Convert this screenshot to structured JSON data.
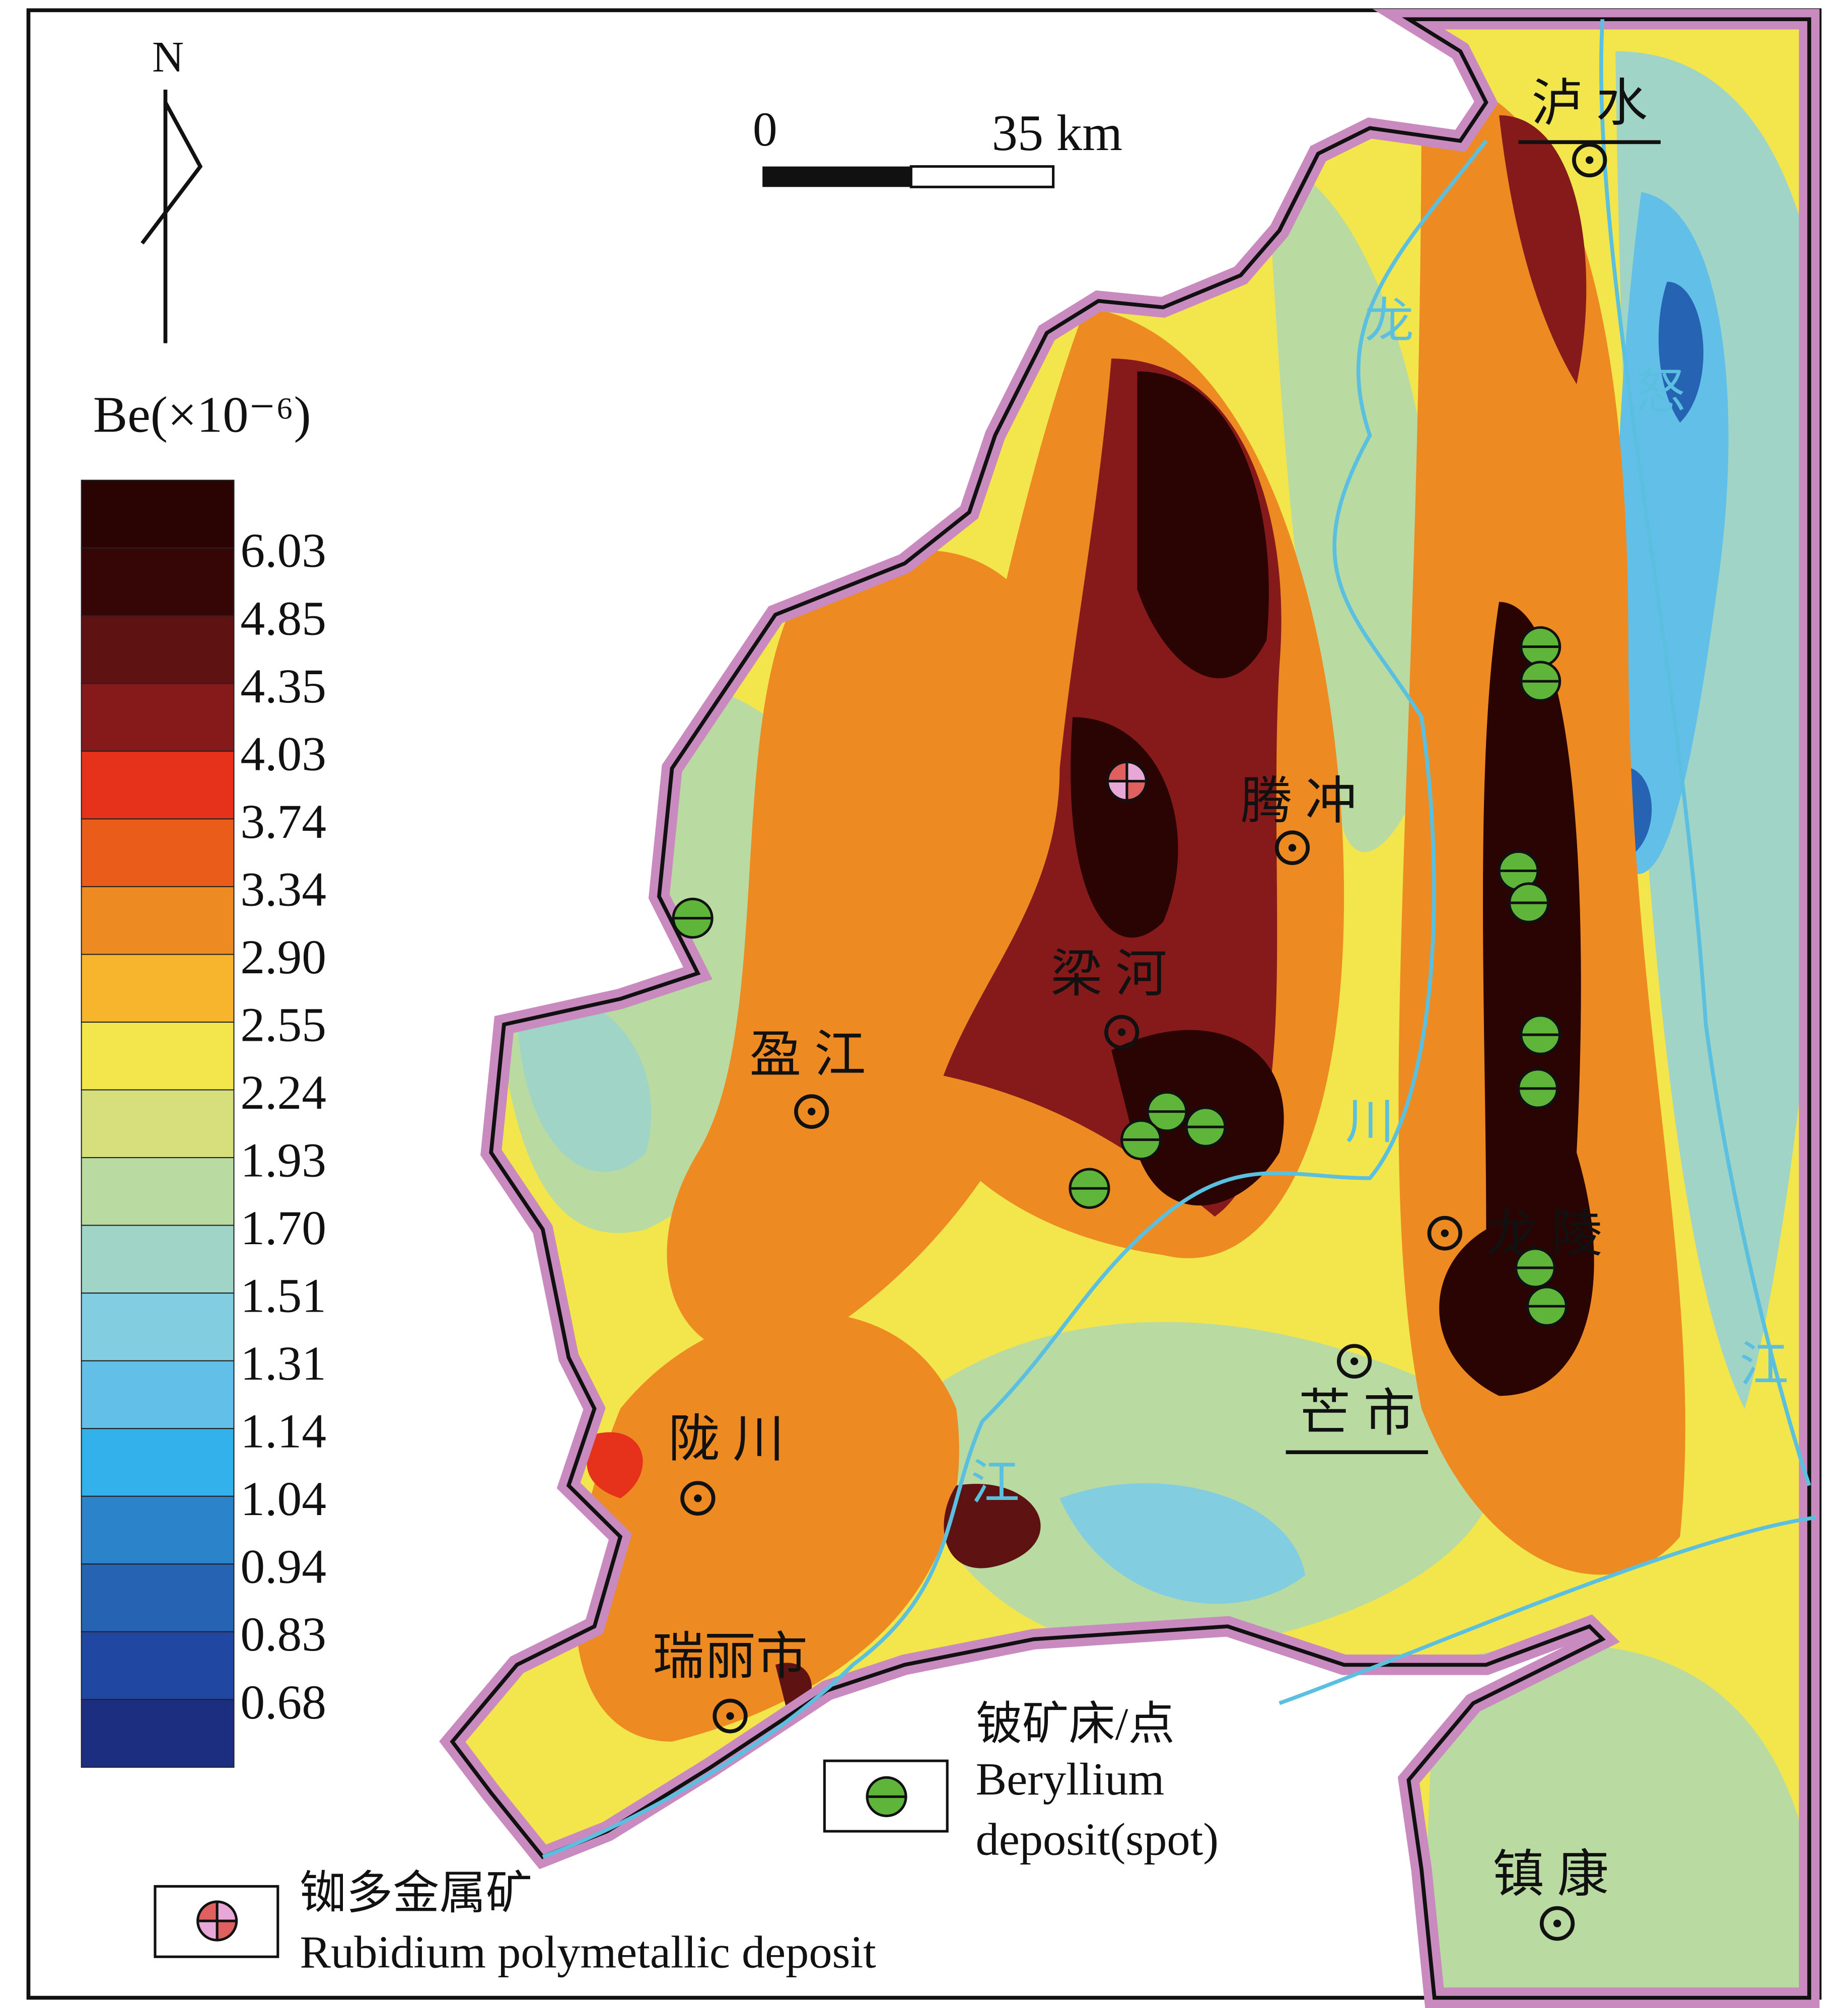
{
  "compass": {
    "label": "N"
  },
  "scale_bar": {
    "labels": [
      "0",
      "35 km"
    ]
  },
  "legend": {
    "title": "Be(×10⁻⁶)",
    "labels": [
      "6.03",
      "4.85",
      "4.35",
      "4.03",
      "3.74",
      "3.34",
      "2.90",
      "2.55",
      "2.24",
      "1.93",
      "1.70",
      "1.51",
      "1.31",
      "1.14",
      "1.04",
      "0.94",
      "0.83",
      "0.68"
    ],
    "colors": [
      "#2a0303",
      "#360606",
      "#5e1212",
      "#861a1a",
      "#e6321b",
      "#e95c19",
      "#ee8a22",
      "#f6b52c",
      "#f3e54c",
      "#d7df7d",
      "#b9dba2",
      "#9fd4c6",
      "#82cde0",
      "#62c0e8",
      "#33b1ea",
      "#2b83c9",
      "#2663b2",
      "#2048a2",
      "#1b2e80"
    ]
  },
  "places": [
    "泸 水",
    "腾 冲",
    "梁 河",
    "盈 江",
    "龙 陵",
    "芒 市",
    "陇 川",
    "瑞丽市",
    "镇 康"
  ],
  "rivers": [
    "龙",
    "怒",
    "川",
    "江",
    "江"
  ],
  "symbols": {
    "beryllium": [
      "铍矿床/点",
      "Beryllium",
      "deposit(spot)"
    ],
    "rubidium": [
      "铷多金属矿",
      "Rubidium polymetallic deposit"
    ]
  }
}
